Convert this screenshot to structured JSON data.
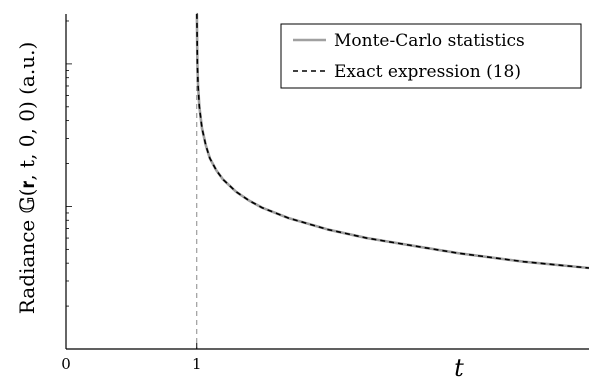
{
  "chart_data": {
    "type": "line",
    "title": "",
    "xlabel": "t",
    "ylabel": "Radiance 𝔾(𝐫, t, 0, 0)  (a.u.)",
    "x_ticks": [
      "0",
      "1"
    ],
    "xlim": [
      0,
      4
    ],
    "y_scale": "log",
    "y_tick_labels_shown": false,
    "vertical_reference_line_x": 1,
    "legend_position": "top-right",
    "grid": false,
    "series": [
      {
        "name": "Monte-Carlo statistics",
        "style": "solid",
        "color": "#a0a0a0",
        "x": [
          1.001,
          1.005,
          1.01,
          1.02,
          1.04,
          1.07,
          1.1,
          1.15,
          1.2,
          1.3,
          1.4,
          1.5,
          1.7,
          2.0,
          2.3,
          2.6,
          3.0,
          3.5,
          4.0
        ],
        "y": [
          22.4,
          10.0,
          7.07,
          5.0,
          3.54,
          2.67,
          2.18,
          1.79,
          1.55,
          1.27,
          1.1,
          0.98,
          0.83,
          0.69,
          0.6,
          0.54,
          0.47,
          0.41,
          0.37
        ]
      },
      {
        "name": "Exact expression (18)",
        "style": "dashed",
        "color": "#000000",
        "x": [
          1.001,
          1.005,
          1.01,
          1.02,
          1.04,
          1.07,
          1.1,
          1.15,
          1.2,
          1.3,
          1.4,
          1.5,
          1.7,
          2.0,
          2.3,
          2.6,
          3.0,
          3.5,
          4.0
        ],
        "y": [
          22.4,
          10.0,
          7.07,
          5.0,
          3.54,
          2.67,
          2.18,
          1.79,
          1.55,
          1.27,
          1.1,
          0.98,
          0.83,
          0.69,
          0.6,
          0.54,
          0.47,
          0.41,
          0.37
        ]
      }
    ]
  }
}
